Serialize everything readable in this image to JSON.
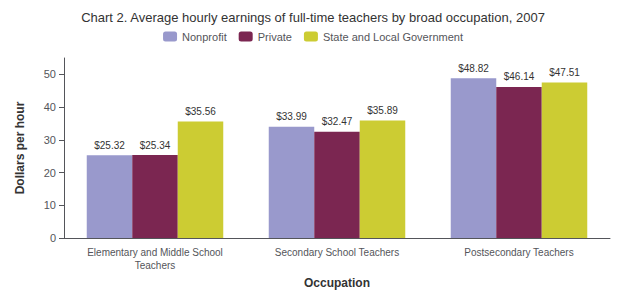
{
  "chart_data": {
    "type": "bar",
    "title": "Chart 2. Average hourly earnings of full-time teachers by broad occupation, 2007",
    "xlabel": "Occupation",
    "ylabel": "Dollars per hour",
    "categories": [
      "Elementary and Middle School\nTeachers",
      "Secondary School Teachers",
      "Postsecondary Teachers"
    ],
    "series": [
      {
        "name": "Nonprofit",
        "color": "#9999CC",
        "values": [
          25.32,
          33.99,
          48.82
        ],
        "value_labels": [
          "$25.32",
          "$33.99",
          "$48.82"
        ]
      },
      {
        "name": "Private",
        "color": "#7B2651",
        "values": [
          25.34,
          32.47,
          46.14
        ],
        "value_labels": [
          "$25.34",
          "$32.47",
          "$46.14"
        ]
      },
      {
        "name": "State and Local Government",
        "color": "#CCCC33",
        "values": [
          35.56,
          35.89,
          47.51
        ],
        "value_labels": [
          "$35.56",
          "$35.89",
          "$47.51"
        ]
      }
    ],
    "ylim": [
      0,
      55
    ],
    "yticks": [
      0,
      10,
      20,
      30,
      40,
      50
    ],
    "grid": false,
    "legend": "top",
    "data_labels": true
  }
}
